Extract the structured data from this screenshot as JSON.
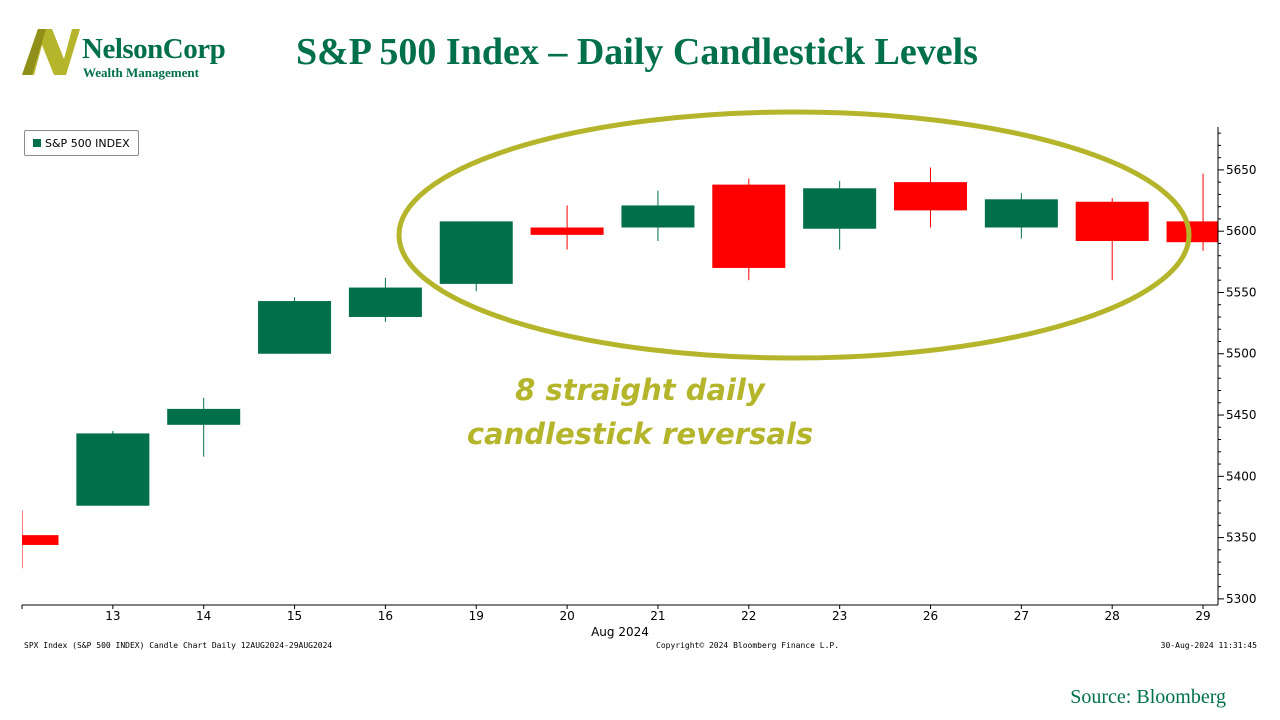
{
  "header": {
    "title": "S&P 500 Index – Daily Candlestick Levels",
    "logo_name": "NelsonCorp",
    "logo_sub": "Wealth Management"
  },
  "chart_data": {
    "type": "candlestick",
    "legend": "S&P 500 INDEX",
    "x_month_label": "Aug 2024",
    "y_ticks": [
      5300,
      5350,
      5400,
      5450,
      5500,
      5550,
      5600,
      5650
    ],
    "ylim": [
      5295,
      5685
    ],
    "grid": false,
    "legend_position": "top-left",
    "candles": [
      {
        "label": "",
        "open": 5352,
        "high": 5372,
        "low": 5325,
        "close": 5344
      },
      {
        "label": "13",
        "open": 5376,
        "high": 5437,
        "low": 5376,
        "close": 5435
      },
      {
        "label": "14",
        "open": 5442,
        "high": 5464,
        "low": 5416,
        "close": 5455
      },
      {
        "label": "15",
        "open": 5500,
        "high": 5546,
        "low": 5500,
        "close": 5543
      },
      {
        "label": "16",
        "open": 5530,
        "high": 5562,
        "low": 5526,
        "close": 5554
      },
      {
        "label": "19",
        "open": 5557,
        "high": 5608,
        "low": 5551,
        "close": 5608
      },
      {
        "label": "20",
        "open": 5603,
        "high": 5621,
        "low": 5585,
        "close": 5597
      },
      {
        "label": "21",
        "open": 5603,
        "high": 5633,
        "low": 5592,
        "close": 5621
      },
      {
        "label": "22",
        "open": 5638,
        "high": 5643,
        "low": 5560,
        "close": 5570
      },
      {
        "label": "23",
        "open": 5602,
        "high": 5641,
        "low": 5585,
        "close": 5635
      },
      {
        "label": "26",
        "open": 5640,
        "high": 5652,
        "low": 5603,
        "close": 5617
      },
      {
        "label": "27",
        "open": 5603,
        "high": 5631,
        "low": 5594,
        "close": 5626
      },
      {
        "label": "28",
        "open": 5624,
        "high": 5627,
        "low": 5560,
        "close": 5592
      },
      {
        "label": "29",
        "open": 5608,
        "high": 5647,
        "low": 5584,
        "close": 5591
      }
    ],
    "colors": {
      "up": "#00704a",
      "down": "#ff0000",
      "annotation": "#b5b52c"
    },
    "annotation": [
      "8 straight daily",
      "candlestick reversals"
    ]
  },
  "footer": {
    "left": "SPX Index (S&P 500 INDEX) Candle Chart  Daily 12AUG2024-29AUG2024",
    "center": "Copyright© 2024 Bloomberg Finance L.P.",
    "right": "30-Aug-2024 11:31:45"
  },
  "source": "Source: Bloomberg"
}
